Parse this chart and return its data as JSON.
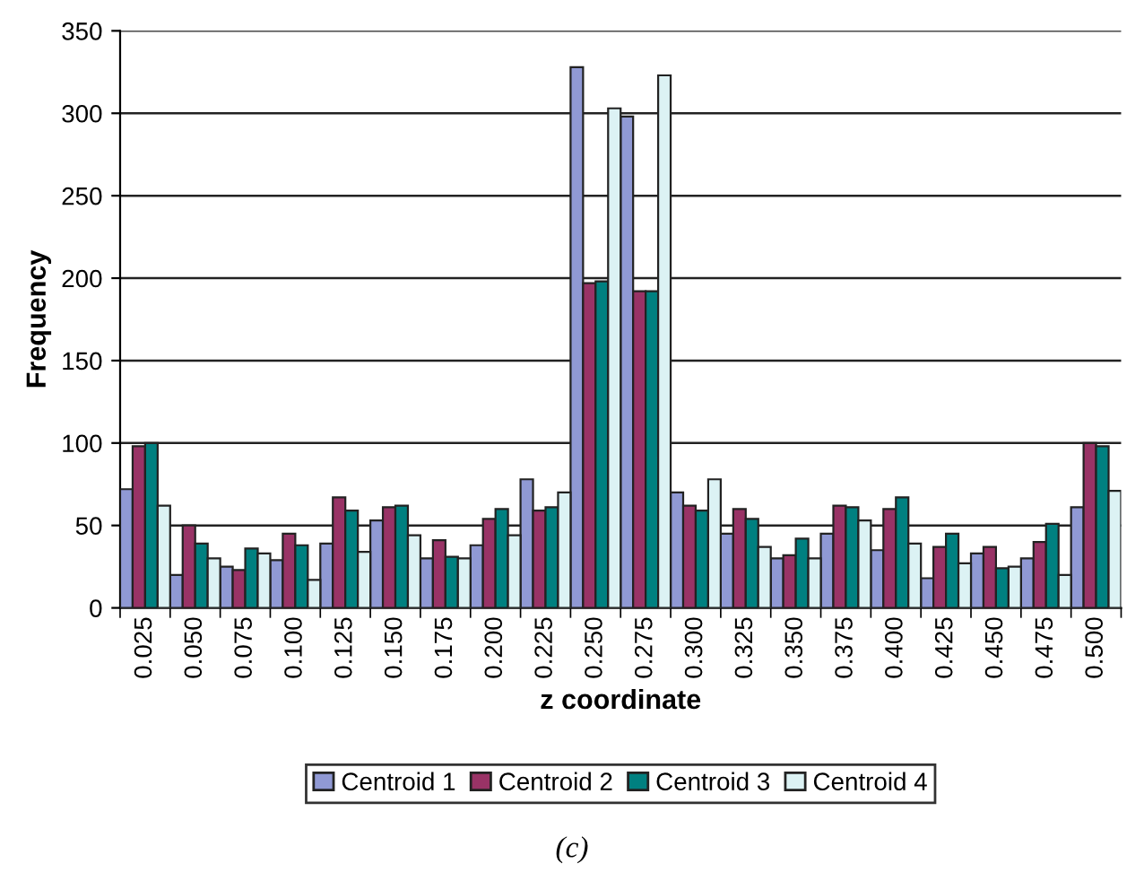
{
  "chart_data": {
    "type": "bar",
    "xlabel": "z coordinate",
    "ylabel": "Frequency",
    "annotations": [
      "(c)"
    ],
    "categories": [
      "0.025",
      "0.050",
      "0.075",
      "0.100",
      "0.125",
      "0.150",
      "0.175",
      "0.200",
      "0.225",
      "0.250",
      "0.275",
      "0.300",
      "0.325",
      "0.350",
      "0.375",
      "0.400",
      "0.425",
      "0.450",
      "0.475",
      "0.500"
    ],
    "series": [
      {
        "name": "Centroid 1",
        "color": "#9099d4",
        "values": [
          72,
          20,
          25,
          29,
          39,
          53,
          30,
          38,
          78,
          328,
          298,
          70,
          45,
          30,
          45,
          35,
          18,
          33,
          30,
          61
        ]
      },
      {
        "name": "Centroid 2",
        "color": "#993366",
        "values": [
          98,
          50,
          23,
          45,
          67,
          61,
          41,
          54,
          59,
          197,
          192,
          62,
          60,
          32,
          62,
          60,
          37,
          37,
          40,
          100
        ]
      },
      {
        "name": "Centroid 3",
        "color": "#008080",
        "values": [
          100,
          39,
          36,
          38,
          59,
          62,
          31,
          60,
          61,
          198,
          192,
          59,
          54,
          42,
          61,
          67,
          45,
          24,
          51,
          98
        ]
      },
      {
        "name": "Centroid 4",
        "color": "#dcf2f4",
        "values": [
          62,
          30,
          33,
          17,
          34,
          44,
          30,
          44,
          70,
          303,
          323,
          78,
          37,
          30,
          53,
          39,
          27,
          25,
          20,
          71
        ]
      }
    ],
    "ylim": [
      0,
      350
    ],
    "yticks": [
      0,
      50,
      100,
      150,
      200,
      250,
      300,
      350
    ],
    "grid": "y",
    "legend": "bottom"
  }
}
